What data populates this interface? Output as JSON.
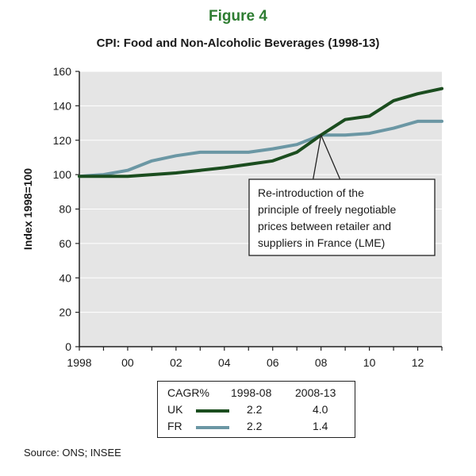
{
  "figure_label": "Figure 4",
  "chart_data": {
    "type": "line",
    "title": "CPI: Food and Non-Alcoholic Beverages (1998-13)",
    "xlabel": "",
    "ylabel": "Index 1998=100",
    "xlim": [
      1998,
      2013
    ],
    "ylim": [
      0,
      160
    ],
    "y_ticks": [
      0,
      20,
      40,
      60,
      80,
      100,
      120,
      140,
      160
    ],
    "x_ticks": [
      1998,
      2000,
      2002,
      2004,
      2006,
      2008,
      2010,
      2012
    ],
    "x_tick_labels": [
      "1998",
      "00",
      "02",
      "04",
      "06",
      "08",
      "10",
      "12"
    ],
    "grid": "horizontal",
    "series": [
      {
        "name": "UK",
        "color": "#1b4d1f",
        "x": [
          1998,
          1999,
          2000,
          2001,
          2002,
          2003,
          2004,
          2005,
          2006,
          2007,
          2008,
          2009,
          2010,
          2011,
          2012,
          2013
        ],
        "y": [
          99,
          99,
          99,
          100,
          101,
          102.5,
          104,
          106,
          108,
          113,
          123,
          132,
          134,
          143,
          147,
          150
        ]
      },
      {
        "name": "FR",
        "color": "#6b97a4",
        "x": [
          1998,
          1999,
          2000,
          2001,
          2002,
          2003,
          2004,
          2005,
          2006,
          2007,
          2008,
          2009,
          2010,
          2011,
          2012,
          2013
        ],
        "y": [
          99,
          100,
          102.5,
          108,
          111,
          113,
          113,
          113,
          115,
          117.5,
          123,
          123,
          124,
          127,
          131,
          131
        ]
      }
    ],
    "annotation": {
      "text_lines": [
        "Re-introduction of the",
        "principle of freely negotiable",
        "prices between retailer and",
        "suppliers in France (LME)"
      ],
      "points_to": {
        "x": 2008,
        "y": 123
      }
    }
  },
  "legend": {
    "header": {
      "label": "CAGR%",
      "period1": "1998-08",
      "period2": "2008-13"
    },
    "rows": [
      {
        "name": "UK",
        "color": "#1b4d1f",
        "v1": "2.2",
        "v2": "4.0"
      },
      {
        "name": "FR",
        "color": "#6b97a4",
        "v1": "2.2",
        "v2": "1.4"
      }
    ]
  },
  "source": "Source: ONS; INSEE"
}
